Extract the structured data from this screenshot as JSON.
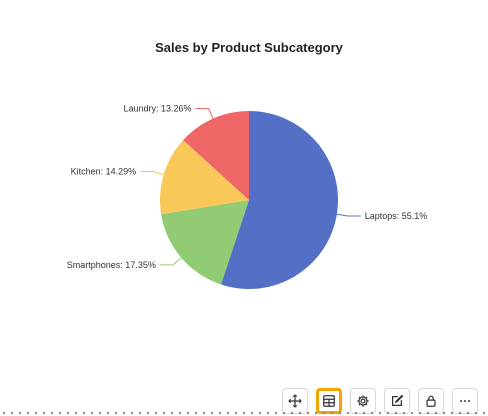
{
  "chart_data": {
    "type": "pie",
    "title": "Sales by Product Subcategory",
    "slices": [
      {
        "name": "Laptops",
        "label": "Laptops: 55.1%",
        "value": 55.1,
        "color": "#5470c6"
      },
      {
        "name": "Smartphones",
        "label": "Smartphones: 17.35%",
        "value": 17.35,
        "color": "#91cc75"
      },
      {
        "name": "Kitchen",
        "label": "Kitchen: 14.29%",
        "value": 14.29,
        "color": "#fac858"
      },
      {
        "name": "Laundry",
        "label": "Laundry: 13.26%",
        "value": 13.26,
        "color": "#ee6666"
      }
    ],
    "legend": "none"
  },
  "toolbar": {
    "buttons": [
      {
        "icon": "move-icon",
        "active": false
      },
      {
        "icon": "table-icon",
        "active": true
      },
      {
        "icon": "settings-icon",
        "active": false
      },
      {
        "icon": "edit-icon",
        "active": false
      },
      {
        "icon": "lock-icon",
        "active": false
      },
      {
        "icon": "more-icon",
        "active": false
      }
    ],
    "active_color": "#f5a300"
  }
}
